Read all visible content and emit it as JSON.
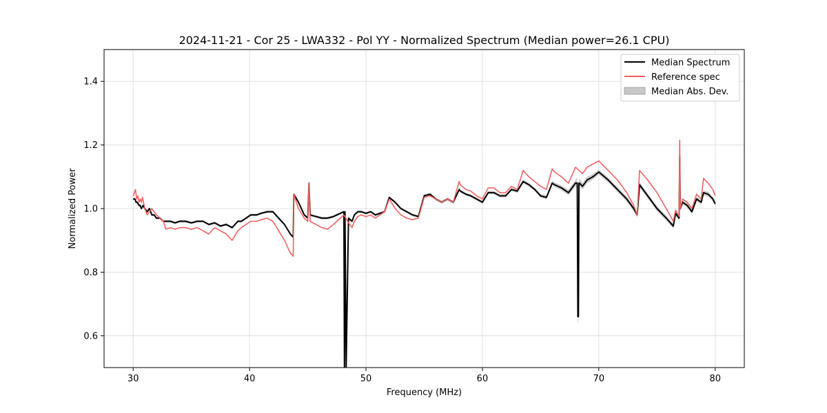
{
  "chart_data": {
    "type": "line",
    "title": "2024-11-21 - Cor 25 - LWA332 - Pol YY - Normalized Spectrum (Median power=26.1 CPU)",
    "xlabel": "Frequency (MHz)",
    "ylabel": "Normalized Power",
    "xlim": [
      27.5,
      82.5
    ],
    "ylim": [
      0.5,
      1.5
    ],
    "xticks": [
      30,
      40,
      50,
      60,
      70,
      80
    ],
    "yticks": [
      0.6,
      0.8,
      1.0,
      1.2,
      1.4
    ],
    "xtick_labels": [
      "30",
      "40",
      "50",
      "60",
      "70",
      "80"
    ],
    "ytick_labels": [
      "0.6",
      "0.8",
      "1.0",
      "1.2",
      "1.4"
    ],
    "grid": true,
    "legend_position": "upper right",
    "legend": [
      "Median Spectrum",
      "Reference spec",
      "Median Abs. Dev."
    ],
    "colors": {
      "median": "#000000",
      "reference": "#f06060",
      "mad": "#c8c8c8"
    },
    "series": [
      {
        "name": "Median Spectrum",
        "x": [
          30.0,
          30.15,
          30.25,
          30.35,
          30.5,
          30.6,
          30.7,
          30.85,
          31.0,
          31.2,
          31.4,
          31.6,
          31.8,
          32.0,
          32.3,
          32.6,
          32.8,
          33.2,
          33.6,
          34.0,
          34.5,
          35.0,
          35.5,
          36.0,
          36.5,
          37.0,
          37.5,
          38.0,
          38.5,
          39.0,
          39.3,
          39.7,
          40.1,
          40.6,
          41.0,
          41.5,
          42.0,
          42.5,
          43.0,
          43.5,
          43.75,
          43.8,
          44.2,
          44.7,
          45.0,
          45.1,
          45.2,
          45.7,
          46.2,
          46.7,
          47.2,
          47.5,
          47.8,
          48.1,
          48.15,
          48.2,
          48.3,
          48.5,
          48.8,
          49.0,
          49.3,
          49.6,
          50.0,
          50.4,
          50.8,
          51.2,
          51.6,
          52.0,
          52.5,
          53.0,
          53.5,
          54.0,
          54.5,
          55.0,
          55.5,
          56.0,
          56.5,
          57.0,
          57.5,
          58.0,
          58.1,
          58.6,
          59.0,
          59.5,
          60.0,
          60.5,
          61.0,
          61.5,
          62.0,
          62.5,
          63.0,
          63.5,
          64.0,
          64.5,
          65.0,
          65.5,
          66.0,
          66.2,
          66.8,
          67.4,
          68.0,
          68.15,
          68.2,
          68.25,
          68.3,
          68.35,
          68.6,
          69.0,
          69.5,
          70.0,
          70.8,
          71.6,
          72.4,
          73.0,
          73.3,
          73.5,
          74.2,
          75.0,
          75.8,
          76.4,
          76.6,
          76.9,
          76.95,
          77.0,
          77.2,
          77.6,
          78.0,
          78.4,
          78.8,
          79.0,
          79.4,
          79.8,
          80.0
        ],
        "y": [
          1.03,
          1.03,
          1.02,
          1.02,
          1.01,
          1.01,
          1.0,
          1.01,
          1.0,
          0.99,
          1.0,
          0.98,
          0.98,
          0.97,
          0.97,
          0.96,
          0.96,
          0.96,
          0.955,
          0.96,
          0.96,
          0.955,
          0.96,
          0.96,
          0.95,
          0.955,
          0.945,
          0.95,
          0.94,
          0.96,
          0.96,
          0.97,
          0.98,
          0.98,
          0.985,
          0.99,
          0.99,
          0.97,
          0.95,
          0.92,
          0.91,
          1.045,
          1.02,
          0.98,
          0.97,
          1.08,
          0.98,
          0.975,
          0.97,
          0.97,
          0.975,
          0.98,
          0.985,
          0.99,
          0.5,
          0.99,
          0.5,
          0.97,
          0.96,
          0.98,
          0.99,
          0.99,
          0.985,
          0.99,
          0.98,
          0.985,
          0.99,
          1.035,
          1.02,
          1.0,
          0.99,
          0.98,
          0.975,
          1.04,
          1.045,
          1.03,
          1.02,
          1.03,
          1.02,
          1.06,
          1.055,
          1.045,
          1.04,
          1.03,
          1.02,
          1.05,
          1.05,
          1.04,
          1.04,
          1.06,
          1.055,
          1.085,
          1.075,
          1.06,
          1.04,
          1.035,
          1.08,
          1.075,
          1.065,
          1.05,
          1.08,
          1.08,
          0.66,
          0.66,
          1.08,
          1.08,
          1.07,
          1.09,
          1.1,
          1.115,
          1.09,
          1.06,
          1.03,
          1.0,
          0.98,
          1.075,
          1.04,
          1.0,
          0.97,
          0.945,
          0.985,
          0.97,
          1.165,
          1.0,
          1.02,
          1.01,
          0.99,
          1.03,
          1.02,
          1.05,
          1.045,
          1.03,
          1.015
        ]
      },
      {
        "name": "Reference spec",
        "x": [
          30.0,
          30.1,
          30.2,
          30.3,
          30.4,
          30.5,
          30.6,
          30.7,
          30.8,
          31.0,
          31.2,
          31.4,
          31.6,
          31.8,
          32.0,
          32.3,
          32.6,
          32.8,
          33.2,
          33.6,
          34.0,
          34.5,
          35.0,
          35.5,
          36.0,
          36.5,
          37.0,
          37.5,
          38.0,
          38.5,
          39.0,
          39.3,
          39.7,
          40.1,
          40.6,
          41.0,
          41.5,
          42.0,
          42.5,
          43.0,
          43.5,
          43.75,
          43.8,
          44.2,
          44.7,
          45.0,
          45.1,
          45.2,
          45.7,
          46.2,
          46.7,
          47.2,
          47.5,
          47.8,
          48.1,
          48.5,
          48.8,
          49.0,
          49.3,
          49.6,
          50.0,
          50.4,
          50.8,
          51.2,
          51.6,
          52.0,
          52.5,
          53.0,
          53.5,
          54.0,
          54.5,
          55.0,
          55.5,
          56.0,
          56.5,
          57.0,
          57.5,
          58.0,
          58.1,
          58.6,
          59.0,
          59.5,
          60.0,
          60.5,
          61.0,
          61.5,
          62.0,
          62.5,
          63.0,
          63.5,
          64.0,
          64.5,
          65.0,
          65.5,
          66.0,
          66.2,
          66.8,
          67.4,
          68.0,
          68.3,
          68.6,
          69.0,
          69.5,
          70.0,
          70.8,
          71.6,
          72.4,
          73.0,
          73.3,
          73.5,
          74.2,
          75.0,
          75.8,
          76.4,
          76.6,
          76.9,
          76.95,
          77.0,
          77.2,
          77.6,
          78.0,
          78.4,
          78.8,
          79.0,
          79.4,
          79.8,
          80.0
        ],
        "y": [
          1.04,
          1.05,
          1.06,
          1.03,
          1.04,
          1.02,
          1.03,
          1.02,
          1.035,
          1.0,
          0.98,
          0.99,
          1.0,
          0.99,
          0.98,
          0.97,
          0.96,
          0.935,
          0.94,
          0.935,
          0.94,
          0.94,
          0.935,
          0.94,
          0.93,
          0.92,
          0.94,
          0.93,
          0.92,
          0.9,
          0.93,
          0.94,
          0.95,
          0.96,
          0.96,
          0.965,
          0.97,
          0.96,
          0.93,
          0.9,
          0.86,
          0.85,
          1.045,
          1.0,
          0.97,
          0.96,
          1.08,
          0.96,
          0.95,
          0.94,
          0.935,
          0.95,
          0.96,
          0.97,
          0.98,
          0.955,
          0.94,
          0.96,
          0.975,
          0.98,
          0.975,
          0.98,
          0.97,
          0.98,
          0.99,
          1.03,
          1.0,
          0.98,
          0.97,
          0.965,
          0.97,
          1.035,
          1.04,
          1.03,
          1.02,
          1.03,
          1.02,
          1.085,
          1.075,
          1.06,
          1.055,
          1.04,
          1.03,
          1.065,
          1.065,
          1.05,
          1.05,
          1.07,
          1.06,
          1.12,
          1.1,
          1.085,
          1.07,
          1.06,
          1.125,
          1.115,
          1.1,
          1.08,
          1.13,
          1.12,
          1.11,
          1.13,
          1.14,
          1.15,
          1.12,
          1.09,
          1.05,
          1.01,
          0.98,
          1.12,
          1.09,
          1.05,
          1.0,
          0.96,
          0.995,
          0.975,
          1.215,
          1.0,
          1.03,
          1.02,
          1.0,
          1.045,
          1.03,
          1.095,
          1.08,
          1.06,
          1.04
        ]
      }
    ],
    "mad_band": {
      "name": "Median Abs. Dev.",
      "x": [
        30.0,
        40.0,
        50.0,
        60.0,
        65.0,
        67.0,
        68.0,
        68.2,
        68.4,
        69.0,
        70.0,
        72.0,
        74.0,
        76.0,
        77.0,
        78.0,
        79.0,
        80.0
      ],
      "halfwidth": [
        0.004,
        0.004,
        0.004,
        0.005,
        0.006,
        0.008,
        0.01,
        0.02,
        0.01,
        0.01,
        0.008,
        0.008,
        0.008,
        0.008,
        0.008,
        0.008,
        0.008,
        0.008
      ]
    }
  }
}
